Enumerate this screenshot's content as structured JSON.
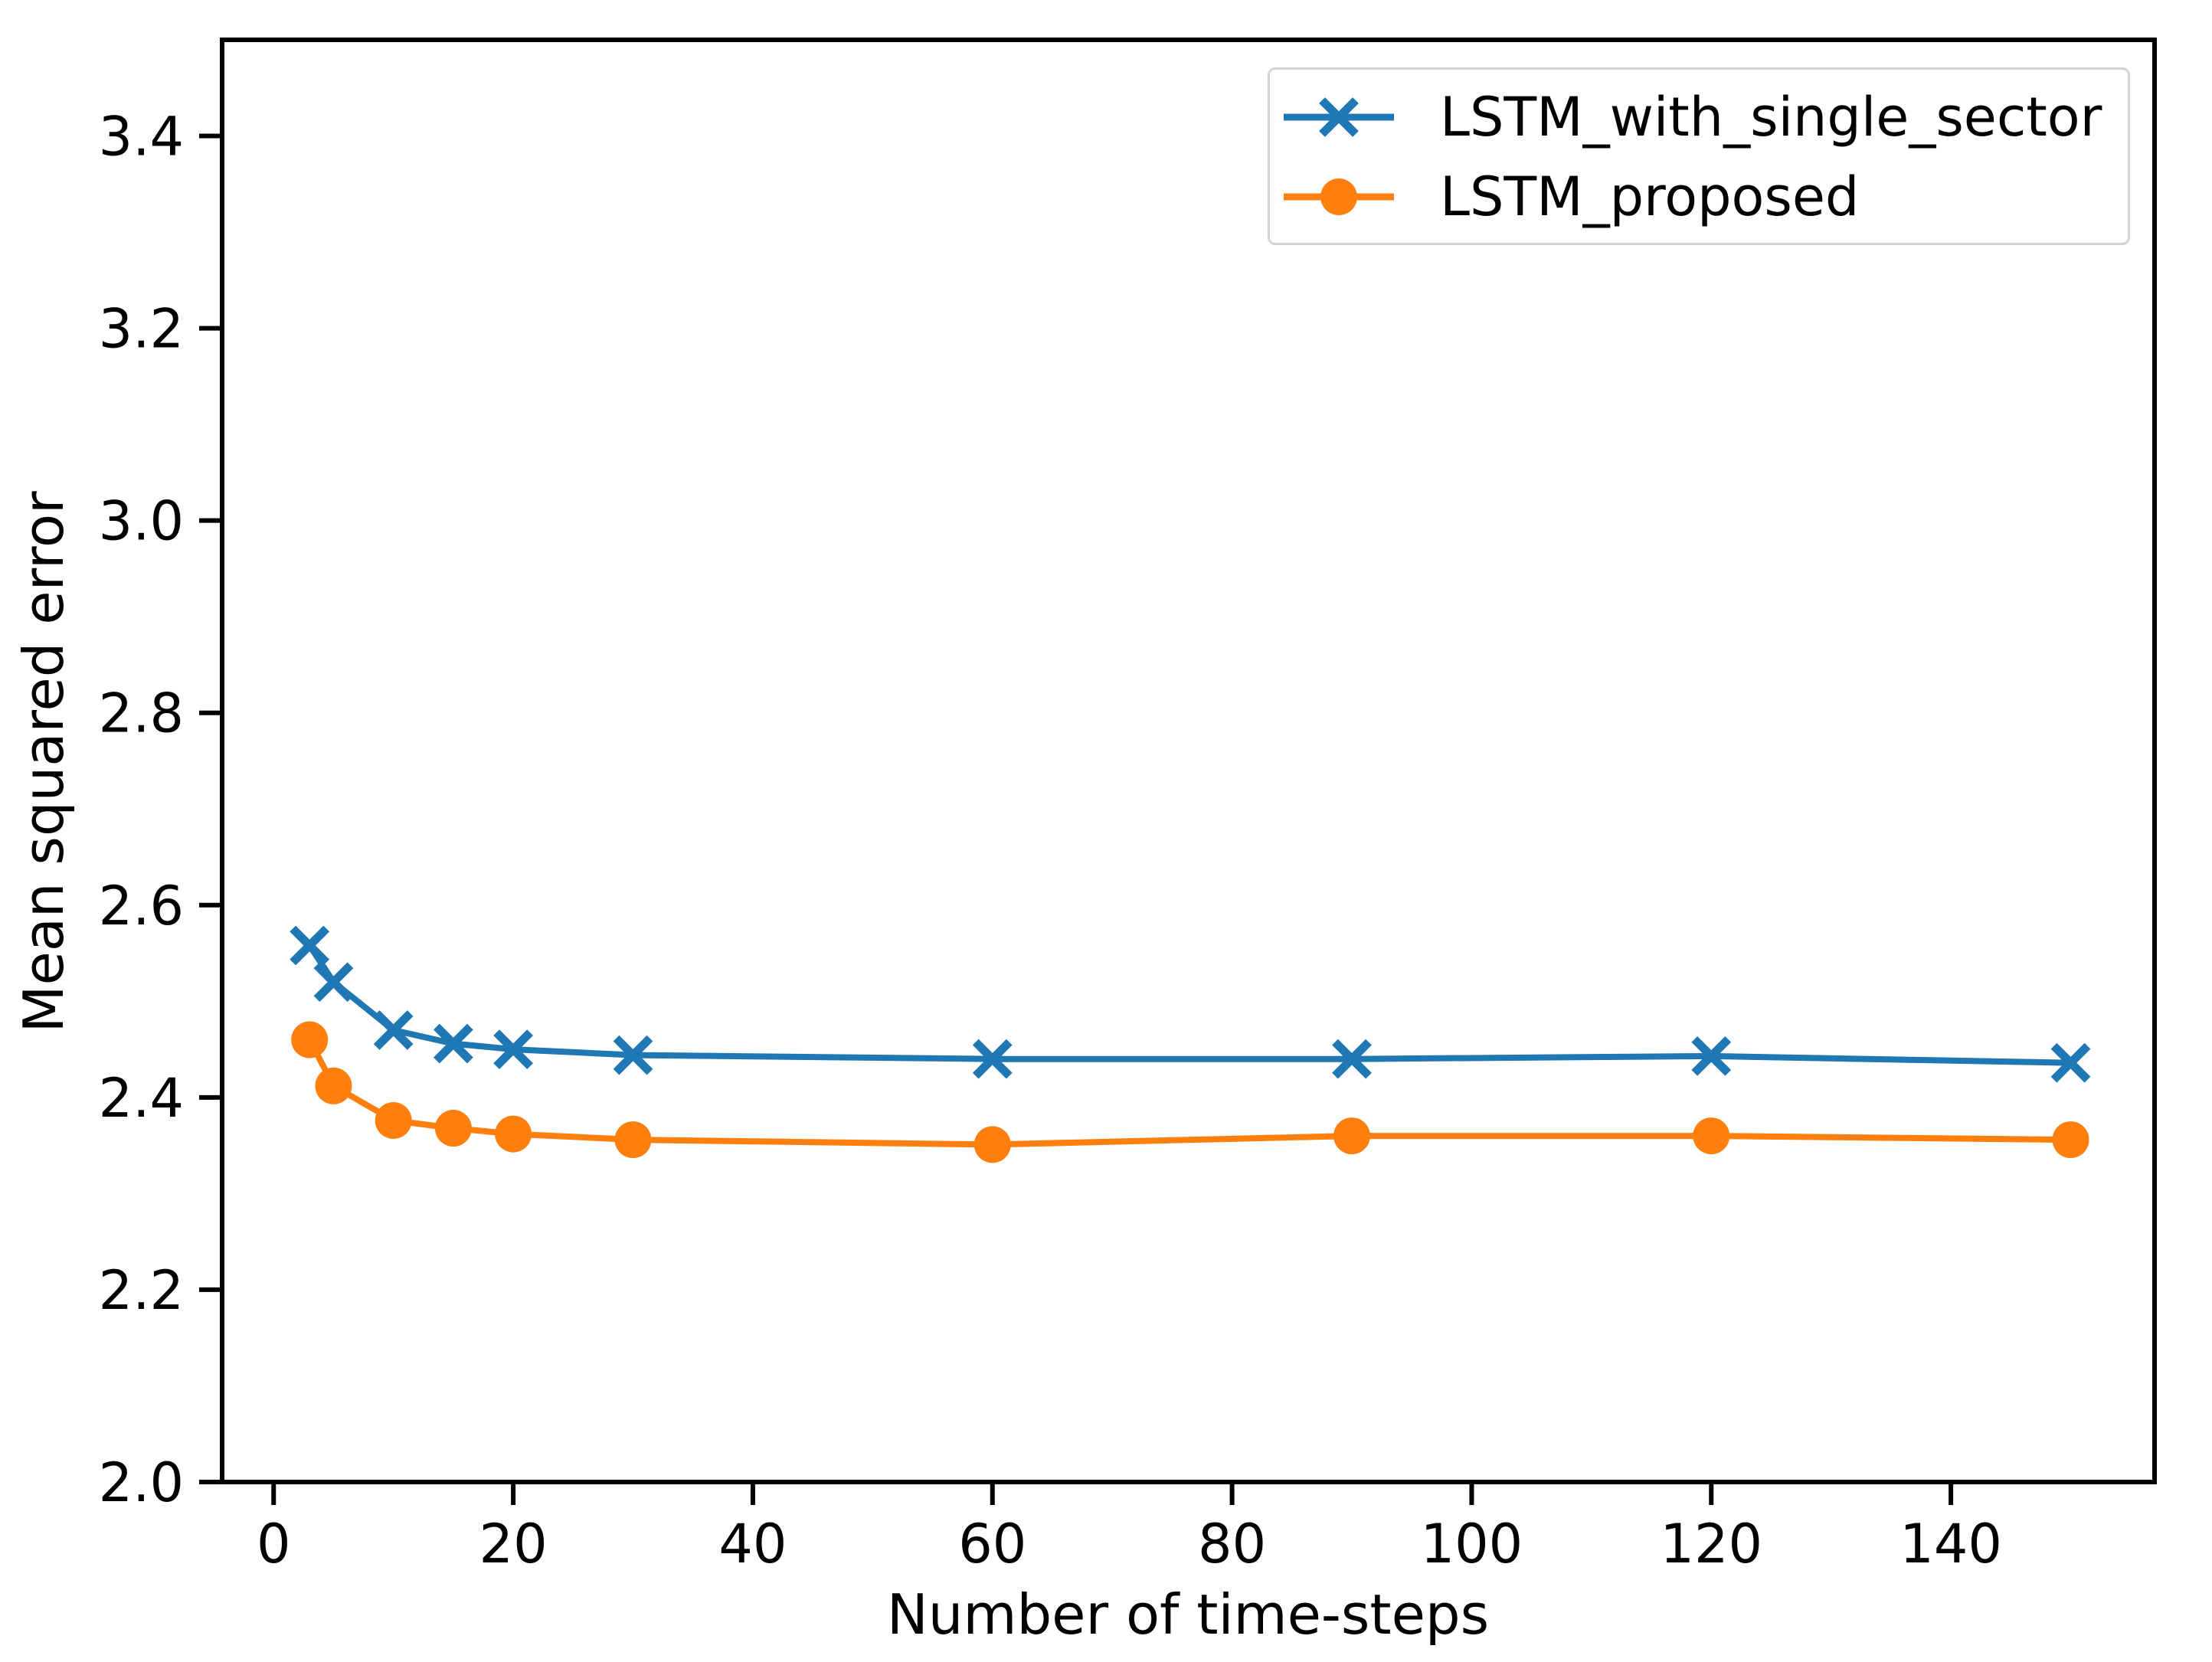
{
  "chart_data": {
    "type": "line",
    "title": "",
    "xlabel": "Number of time-steps",
    "ylabel": "Mean squared error",
    "x": [
      3,
      5,
      10,
      15,
      20,
      30,
      60,
      90,
      120,
      150
    ],
    "series": [
      {
        "name": "LSTM_with_single_sector",
        "color": "#1f77b4",
        "marker": "x",
        "values": [
          2.558,
          2.52,
          2.47,
          2.456,
          2.45,
          2.444,
          2.44,
          2.44,
          2.443,
          2.436
        ]
      },
      {
        "name": "LSTM_proposed",
        "color": "#ff7f0e",
        "marker": "o",
        "values": [
          2.46,
          2.412,
          2.376,
          2.368,
          2.362,
          2.356,
          2.351,
          2.36,
          2.36,
          2.356
        ]
      }
    ],
    "xlim": [
      -4.3,
      157.0
    ],
    "ylim": [
      2.0,
      3.5
    ],
    "xticks": [
      0,
      20,
      40,
      60,
      80,
      100,
      120,
      140
    ],
    "yticks": [
      2.0,
      2.2,
      2.4,
      2.6,
      2.8,
      3.0,
      3.2,
      3.4
    ],
    "grid": false,
    "legend_position": "upper right",
    "axis_color": "#000000",
    "text_color": "#000000"
  }
}
